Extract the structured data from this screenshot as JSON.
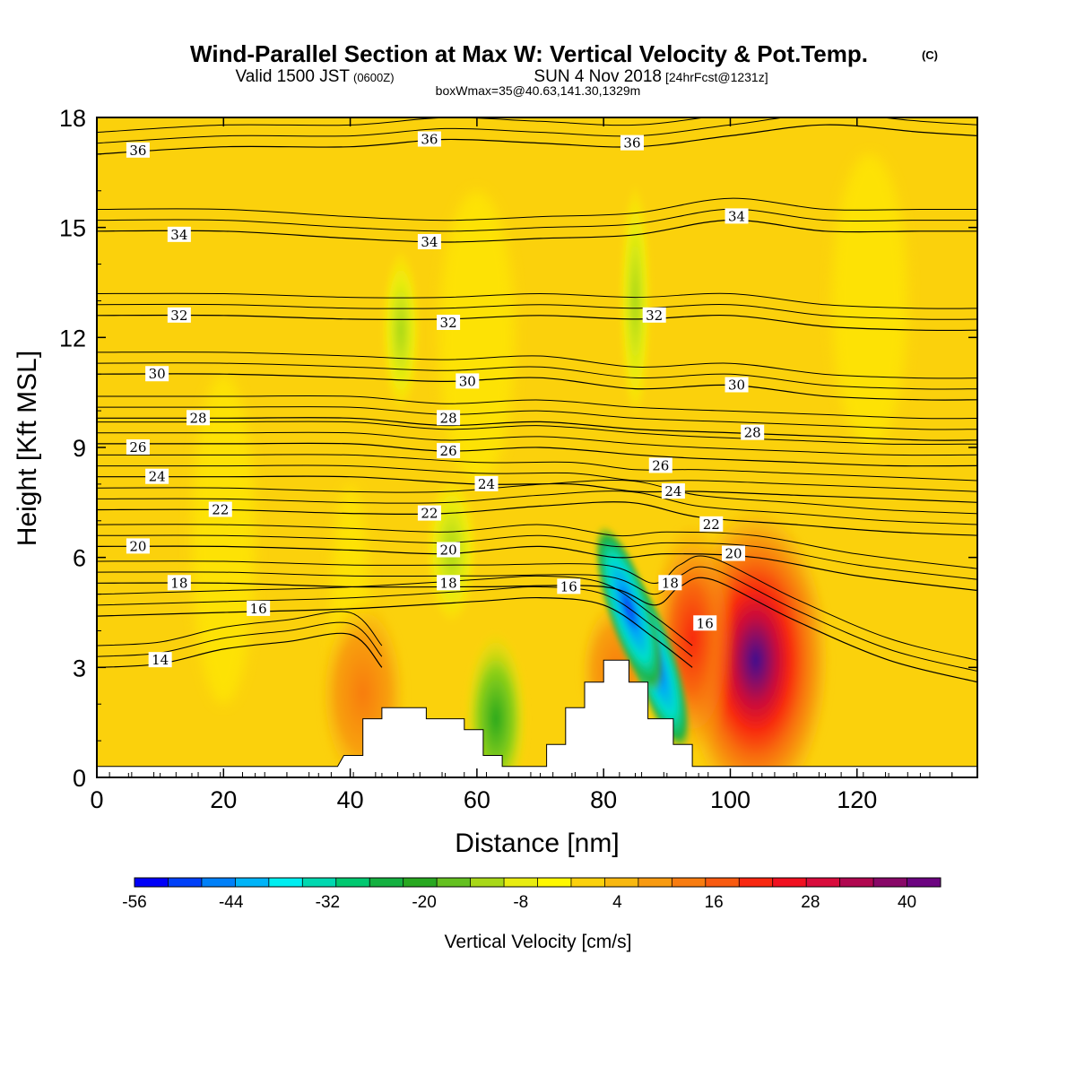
{
  "title": {
    "main": "Wind-Parallel Section at Max W: Vertical Velocity & Pot.Temp.",
    "copyright": "(C)",
    "valid_prefix": "Valid 1500 JST",
    "valid_zulu": "(0600Z)",
    "valid_date": "SUN 4 Nov 2018",
    "forecast": "[24hrFcst@1231z]",
    "box": "boxWmax=35@40.63,141.30,1329m"
  },
  "colors": {
    "background_field": "#fbd10c",
    "frame": "#000000"
  },
  "chart_data": {
    "type": "heatmap",
    "description_fields": "filled contours of vertical velocity with overlaid potential temperature contour lines",
    "xlabel": "Distance [nm]",
    "ylabel": "Height [Kft MSL]",
    "xlim": [
      0,
      139
    ],
    "ylim": [
      0,
      18
    ],
    "x_ticks": [
      "0",
      "20",
      "40",
      "60",
      "80",
      "100",
      "120"
    ],
    "y_ticks": [
      "0",
      "3",
      "6",
      "9",
      "12",
      "15",
      "18"
    ],
    "colorbar": {
      "label": "Vertical Velocity [cm/s]",
      "tick_labels": [
        "-56",
        "-44",
        "-32",
        "-20",
        "-8",
        "4",
        "16",
        "28",
        "40"
      ],
      "colors": [
        "#0000f8",
        "#0040f8",
        "#0080f8",
        "#00b4f8",
        "#00eef0",
        "#00d8b0",
        "#00c870",
        "#14b040",
        "#28a820",
        "#64c020",
        "#a8d818",
        "#e8ec10",
        "#fff800",
        "#fbd10c",
        "#f8b810",
        "#f89a10",
        "#f87c10",
        "#f85a10",
        "#f82810",
        "#f01020",
        "#d80c3c",
        "#b00850",
        "#880868",
        "#6c0480"
      ]
    },
    "theta_contours": [
      {
        "label": "14",
        "x": [
          0,
          10,
          20,
          30,
          40,
          45
        ],
        "y": [
          3.0,
          3.1,
          3.5,
          3.7,
          3.9,
          3.0
        ]
      },
      {
        "label": "16",
        "x": [
          0,
          20,
          40,
          60,
          70,
          80,
          88,
          94
        ],
        "y": [
          4.4,
          4.5,
          4.6,
          4.8,
          4.9,
          4.7,
          3.8,
          3.0
        ]
      },
      {
        "label": "18",
        "x": [
          0,
          20,
          40,
          60,
          80,
          88,
          92,
          97,
          110,
          125,
          139
        ],
        "y": [
          5.3,
          5.3,
          5.2,
          5.2,
          5.2,
          4.7,
          5.2,
          5.4,
          4.3,
          3.2,
          2.6
        ]
      },
      {
        "label": "20",
        "x": [
          0,
          20,
          40,
          55,
          70,
          82,
          90,
          104,
          120,
          139
        ],
        "y": [
          6.3,
          6.3,
          6.2,
          6.1,
          6.3,
          6.0,
          6.1,
          6.0,
          5.5,
          5.1
        ]
      },
      {
        "label": "22",
        "x": [
          0,
          20,
          40,
          55,
          70,
          84,
          95,
          110,
          125,
          139
        ],
        "y": [
          7.3,
          7.3,
          7.2,
          7.2,
          7.4,
          7.5,
          7.1,
          6.9,
          6.7,
          6.6
        ]
      },
      {
        "label": "24",
        "x": [
          0,
          20,
          40,
          60,
          75,
          85,
          95,
          110,
          125,
          139
        ],
        "y": [
          8.2,
          8.2,
          8.2,
          8.0,
          8.0,
          7.8,
          7.8,
          7.7,
          7.6,
          7.5
        ]
      },
      {
        "label": "26",
        "x": [
          0,
          20,
          40,
          55,
          70,
          85,
          95,
          110,
          125,
          139
        ],
        "y": [
          9.1,
          9.1,
          9.1,
          8.9,
          9.0,
          8.8,
          8.7,
          8.6,
          8.5,
          8.5
        ]
      },
      {
        "label": "28",
        "x": [
          0,
          20,
          40,
          55,
          70,
          85,
          100,
          115,
          130,
          139
        ],
        "y": [
          9.8,
          9.8,
          9.8,
          9.6,
          9.7,
          9.5,
          9.4,
          9.3,
          9.2,
          9.2
        ]
      },
      {
        "label": "30",
        "x": [
          0,
          20,
          40,
          55,
          70,
          85,
          100,
          115,
          130,
          139
        ],
        "y": [
          11.0,
          11.0,
          10.9,
          10.8,
          10.9,
          10.6,
          10.7,
          10.4,
          10.3,
          10.3
        ]
      },
      {
        "label": "32",
        "x": [
          0,
          20,
          40,
          55,
          70,
          85,
          100,
          115,
          130,
          139
        ],
        "y": [
          12.6,
          12.6,
          12.5,
          12.5,
          12.6,
          12.5,
          12.6,
          12.3,
          12.2,
          12.2
        ]
      },
      {
        "label": "34",
        "x": [
          0,
          20,
          40,
          55,
          70,
          85,
          100,
          115,
          130,
          139
        ],
        "y": [
          14.9,
          14.9,
          14.7,
          14.6,
          14.7,
          14.8,
          15.2,
          14.9,
          14.9,
          14.9
        ]
      },
      {
        "label": "36",
        "x": [
          0,
          20,
          40,
          55,
          70,
          85,
          100,
          115,
          130,
          139
        ],
        "y": [
          17.0,
          17.2,
          17.2,
          17.4,
          17.3,
          17.2,
          17.5,
          17.8,
          17.6,
          17.5
        ]
      }
    ],
    "contour_labels": [
      {
        "text": "36",
        "x": [
          6.5,
          52.5,
          84.5
        ],
        "y": [
          17.1,
          17.4,
          17.3
        ]
      },
      {
        "text": "34",
        "x": [
          13,
          52.5,
          101
        ],
        "y": [
          14.8,
          14.6,
          15.3
        ]
      },
      {
        "text": "32",
        "x": [
          13,
          55.5,
          88
        ],
        "y": [
          12.6,
          12.4,
          12.6
        ]
      },
      {
        "text": "30",
        "x": [
          9.5,
          58.5,
          101
        ],
        "y": [
          11.0,
          10.8,
          10.7
        ]
      },
      {
        "text": "28",
        "x": [
          16,
          55.5,
          103.5
        ],
        "y": [
          9.8,
          9.8,
          9.4
        ]
      },
      {
        "text": "26",
        "x": [
          6.5,
          55.5,
          89
        ],
        "y": [
          9.0,
          8.9,
          8.5
        ]
      },
      {
        "text": "24",
        "x": [
          9.5,
          61.5,
          91
        ],
        "y": [
          8.2,
          8.0,
          7.8
        ]
      },
      {
        "text": "22",
        "x": [
          19.5,
          52.5,
          97
        ],
        "y": [
          7.3,
          7.2,
          6.9
        ]
      },
      {
        "text": "20",
        "x": [
          6.5,
          55.5,
          100.5
        ],
        "y": [
          6.3,
          6.2,
          6.1
        ]
      },
      {
        "text": "18",
        "x": [
          13,
          55.5,
          90.5
        ],
        "y": [
          5.3,
          5.3,
          5.3
        ]
      },
      {
        "text": "16",
        "x": [
          25.5,
          74.5,
          96
        ],
        "y": [
          4.6,
          5.2,
          4.2
        ]
      },
      {
        "text": "14",
        "x": [
          10
        ],
        "y": [
          3.2
        ]
      }
    ],
    "velocity_features": [
      {
        "sign": "updraft",
        "x": 104,
        "y": 3.2,
        "max_cm_s": 46
      },
      {
        "sign": "updraft",
        "x": 94,
        "y": 3.8,
        "max_cm_s": 26
      },
      {
        "sign": "updraft",
        "x": 82,
        "y": 2.9,
        "max_cm_s": 18
      },
      {
        "sign": "updraft",
        "x": 42,
        "y": 2.3,
        "max_cm_s": 10
      },
      {
        "sign": "downdraft",
        "x": 88,
        "y": 3.2,
        "min_cm_s": -50
      },
      {
        "sign": "downdraft",
        "x": 84,
        "y": 4.6,
        "min_cm_s": -24
      },
      {
        "sign": "downdraft",
        "x": 63,
        "y": 1.6,
        "min_cm_s": -16
      },
      {
        "sign": "downdraft",
        "x": 85,
        "y": 13.0,
        "min_cm_s": -8
      },
      {
        "sign": "downdraft",
        "x": 48,
        "y": 12.2,
        "min_cm_s": -6
      },
      {
        "sign": "downdraft",
        "x": 56,
        "y": 6.2,
        "min_cm_s": -6
      }
    ],
    "terrain": {
      "x": [
        0,
        38,
        39,
        42,
        42,
        45,
        45,
        52,
        52,
        58,
        58,
        61,
        61,
        64,
        64,
        71,
        71,
        74,
        74,
        77,
        77,
        80,
        80,
        84,
        84,
        87,
        87,
        91,
        91,
        94,
        94,
        97,
        97,
        139
      ],
      "y": [
        0.3,
        0.3,
        0.6,
        0.6,
        1.6,
        1.6,
        1.9,
        1.9,
        1.6,
        1.6,
        1.3,
        1.3,
        0.6,
        0.6,
        0.3,
        0.3,
        0.9,
        0.9,
        1.9,
        1.9,
        2.6,
        2.6,
        3.2,
        3.2,
        2.6,
        2.6,
        1.6,
        1.6,
        0.9,
        0.9,
        0.3,
        0.3,
        0.3,
        0.3
      ]
    }
  }
}
